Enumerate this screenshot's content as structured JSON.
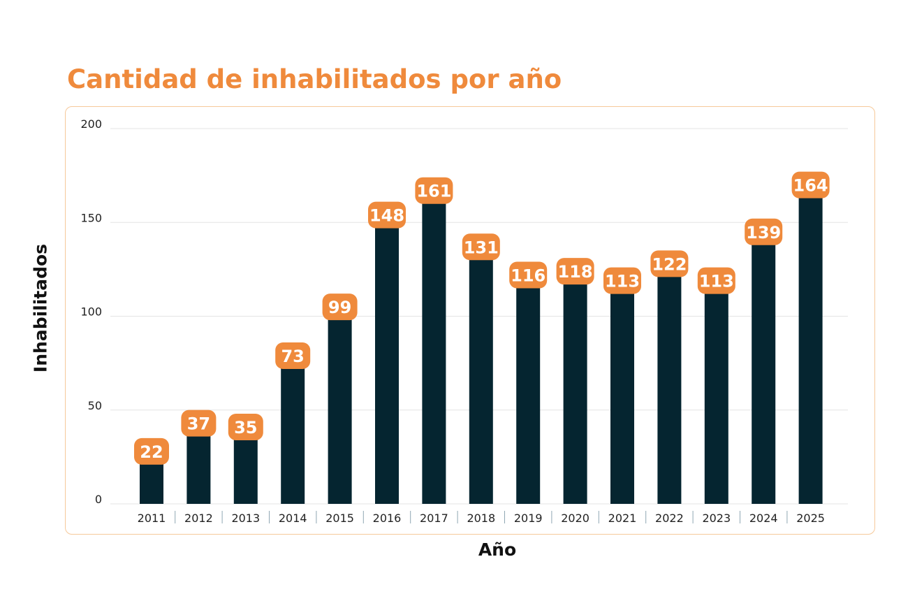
{
  "chart_data": {
    "type": "bar",
    "title": "Cantidad de inhabilitados por año",
    "xlabel": "Año",
    "ylabel": "Inhabilitados",
    "ylim": [
      0,
      200
    ],
    "yticks": [
      0,
      50,
      100,
      150,
      200
    ],
    "grid": true,
    "categories": [
      "2011",
      "2012",
      "2013",
      "2014",
      "2015",
      "2016",
      "2017",
      "2018",
      "2019",
      "2020",
      "2021",
      "2022",
      "2023",
      "2024",
      "2025"
    ],
    "values": [
      22,
      37,
      35,
      73,
      99,
      148,
      161,
      131,
      116,
      118,
      113,
      122,
      113,
      139,
      164
    ],
    "colors": {
      "bar": "#052530",
      "label_bg": "#ef8a3c",
      "label_text": "#ffffff",
      "title": "#ef8a3c",
      "grid": "#e4e4e4",
      "frame": "#f6c99a"
    }
  }
}
